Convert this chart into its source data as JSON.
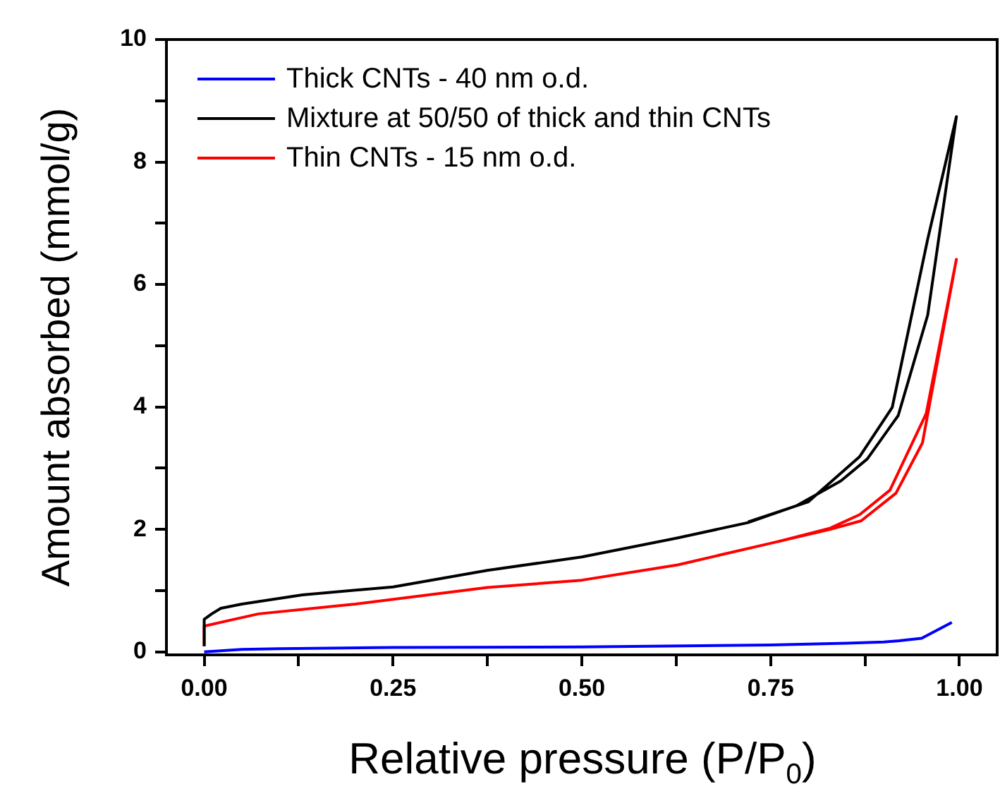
{
  "chart_data": {
    "type": "line",
    "xlabel": "Relative pressure (P/P$_{0}$)",
    "ylabel": "Amount absorbed (mmol/g)",
    "xlim": [
      -0.05,
      1.05
    ],
    "ylim": [
      -0.05,
      10
    ],
    "xticks": [
      {
        "value": 0,
        "label": "0.00"
      },
      {
        "value": 0.125,
        "label": null
      },
      {
        "value": 0.25,
        "label": "0.25"
      },
      {
        "value": 0.375,
        "label": null
      },
      {
        "value": 0.5,
        "label": "0.50"
      },
      {
        "value": 0.625,
        "label": null
      },
      {
        "value": 0.75,
        "label": "0.75"
      },
      {
        "value": 0.875,
        "label": null
      },
      {
        "value": 1,
        "label": "1.00"
      }
    ],
    "yticks": [
      0,
      {
        "value": 1,
        "label": null
      },
      2,
      {
        "value": 3,
        "label": null
      },
      4,
      {
        "value": 5,
        "label": null
      },
      6,
      {
        "value": 7,
        "label": null
      },
      8,
      {
        "value": 9,
        "label": null
      },
      10
    ],
    "grid": false,
    "legend": "top left",
    "marker": "none",
    "line_style": "solid",
    "series": [
      {
        "name": "Thick CNTs - 40 nm o.d.",
        "color": "#0000ff",
        "x": [
          0,
          0.05,
          0.1,
          0.25,
          0.5,
          0.75,
          0.85,
          0.9,
          0.92,
          0.95,
          0.99
        ],
        "values": [
          0.0,
          0.04,
          0.05,
          0.07,
          0.08,
          0.11,
          0.14,
          0.16,
          0.18,
          0.22,
          0.48
        ]
      },
      {
        "name": "Mixture at 50/50 of thick and thin CNTs",
        "color": "#000000",
        "x": [
          0,
          0,
          0.01,
          0.022,
          0.05,
          0.13,
          0.25,
          0.375,
          0.5,
          0.627,
          0.72,
          0.785,
          0.843,
          0.878,
          0.919,
          0.958,
          0.996,
          0.958,
          0.911,
          0.868,
          0.8,
          0.72
        ],
        "values": [
          0.09,
          0.53,
          0.62,
          0.71,
          0.78,
          0.93,
          1.06,
          1.33,
          1.55,
          1.86,
          2.11,
          2.39,
          2.79,
          3.15,
          3.86,
          5.5,
          8.74,
          6.74,
          3.99,
          3.19,
          2.45,
          2.12
        ]
      },
      {
        "name": "Thin CNTs - 15 nm o.d.",
        "color": "#ff0000",
        "x": [
          0,
          0,
          0.025,
          0.072,
          0.2,
          0.375,
          0.5,
          0.627,
          0.749,
          0.829,
          0.87,
          0.916,
          0.951,
          0.996,
          0.956,
          0.908,
          0.868,
          0.829,
          0.76
        ],
        "values": [
          0.09,
          0.42,
          0.49,
          0.62,
          0.78,
          1.05,
          1.17,
          1.42,
          1.77,
          2.0,
          2.14,
          2.59,
          3.41,
          6.41,
          3.89,
          2.64,
          2.24,
          2.02,
          1.8
        ]
      }
    ]
  }
}
